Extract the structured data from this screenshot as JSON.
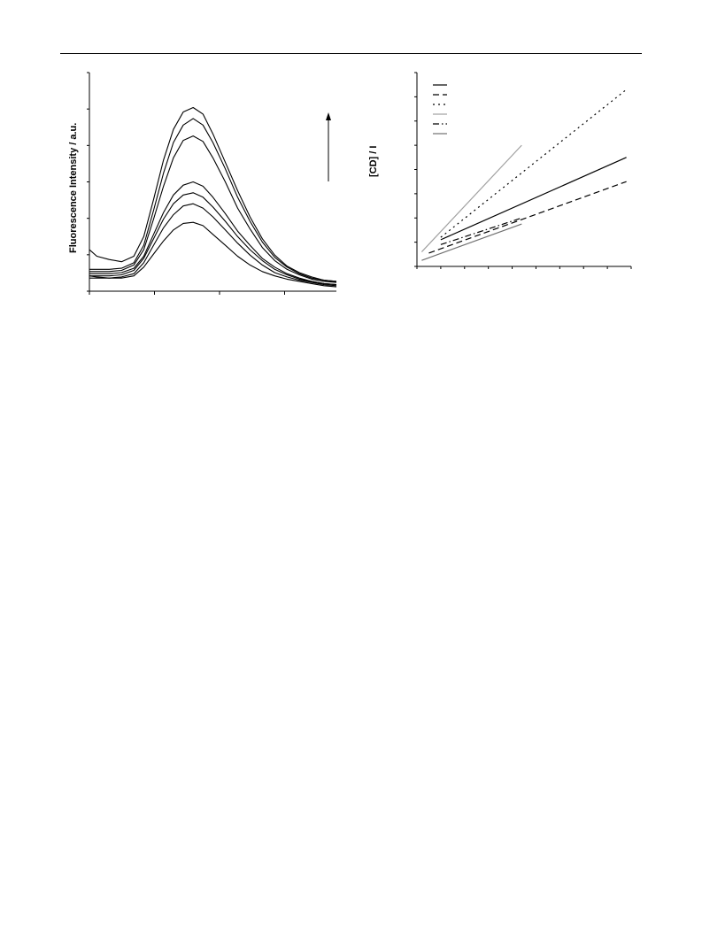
{
  "colors": {
    "ink": "#000000",
    "grey": "#a0a0a0",
    "dark_grey": "#707070",
    "background": "#ffffff"
  },
  "left_chart": {
    "ylabel": "Fluorescence Intensity / a.u."
  },
  "right_chart": {
    "ylabel": "[CD] / I"
  },
  "chart_data": [
    {
      "type": "line",
      "title": "",
      "xlabel": "",
      "ylabel": "Fluorescence Intensity / a.u.",
      "tick_labels_visible": false,
      "xlim": [
        0,
        100
      ],
      "ylim": [
        0,
        100
      ],
      "grid": false,
      "arrow": "upward arrow indicating increasing intensity",
      "x": [
        0,
        3,
        8,
        13,
        18,
        22,
        26,
        30,
        34,
        38,
        42,
        46,
        50,
        55,
        60,
        65,
        70,
        75,
        80,
        85,
        90,
        95,
        100
      ],
      "series": [
        {
          "values": [
            7,
            6.5,
            6,
            6,
            7,
            11,
            17,
            23,
            28,
            31,
            31.5,
            30,
            26,
            21,
            16,
            12,
            9,
            7,
            5.5,
            4.5,
            3.5,
            2.5,
            2
          ]
        },
        {
          "values": [
            6,
            6,
            6,
            6.5,
            8,
            13,
            21,
            29,
            35,
            39,
            40,
            38,
            34,
            28,
            22,
            16.5,
            12,
            8.5,
            6.5,
            5,
            4,
            3,
            2.5
          ]
        },
        {
          "values": [
            7,
            7,
            7,
            7.5,
            9.5,
            15,
            24,
            33,
            40,
            44,
            45,
            43,
            38.5,
            32,
            25,
            19,
            14,
            10,
            7.5,
            5.5,
            4.5,
            3.5,
            3
          ]
        },
        {
          "values": [
            8,
            8,
            8,
            8.5,
            10.5,
            16,
            26,
            36,
            44,
            48.5,
            50,
            48,
            43,
            35.5,
            27.5,
            21,
            15,
            11,
            8,
            6,
            4.5,
            3.5,
            3
          ]
        },
        {
          "values": [
            9,
            9,
            9,
            9.5,
            12,
            19,
            33,
            48,
            61,
            69,
            71,
            68.5,
            61,
            50,
            38,
            28.5,
            20,
            14,
            10,
            7.5,
            5.5,
            4.5,
            4
          ]
        },
        {
          "values": [
            10,
            10,
            10,
            10.5,
            13,
            21,
            37,
            54,
            68,
            76,
            79,
            76,
            68,
            56,
            43,
            32,
            22.5,
            15.5,
            11,
            8,
            6,
            5,
            4.5
          ]
        },
        {
          "values": [
            19,
            16,
            14.5,
            13.5,
            16,
            25,
            42,
            60,
            74,
            82,
            84,
            81,
            72,
            59,
            46,
            34,
            24,
            16.5,
            11.5,
            8.5,
            6.5,
            5,
            4.5
          ]
        }
      ]
    },
    {
      "type": "line",
      "title": "",
      "xlabel": "",
      "ylabel": "[CD] / I",
      "tick_labels_visible": false,
      "xlim": [
        0,
        9
      ],
      "ylim": [
        0,
        8
      ],
      "grid": false,
      "legend": "top-left",
      "series": [
        {
          "style": "solid",
          "color": "#000000",
          "x": [
            1,
            8.8
          ],
          "y": [
            1.1,
            4.5
          ]
        },
        {
          "style": "dashed",
          "color": "#000000",
          "x": [
            0.5,
            8.8
          ],
          "y": [
            0.55,
            3.5
          ]
        },
        {
          "style": "dotted",
          "color": "#000000",
          "x": [
            1,
            8.8
          ],
          "y": [
            1.2,
            7.3
          ]
        },
        {
          "style": "solid",
          "color": "#a0a0a0",
          "x": [
            0.2,
            4.4
          ],
          "y": [
            0.6,
            5
          ]
        },
        {
          "style": "dashdot",
          "color": "#000000",
          "x": [
            1,
            4.4
          ],
          "y": [
            0.9,
            2
          ]
        },
        {
          "style": "solid",
          "color": "#707070",
          "x": [
            0.2,
            4.4
          ],
          "y": [
            0.25,
            1.75
          ]
        }
      ]
    }
  ]
}
